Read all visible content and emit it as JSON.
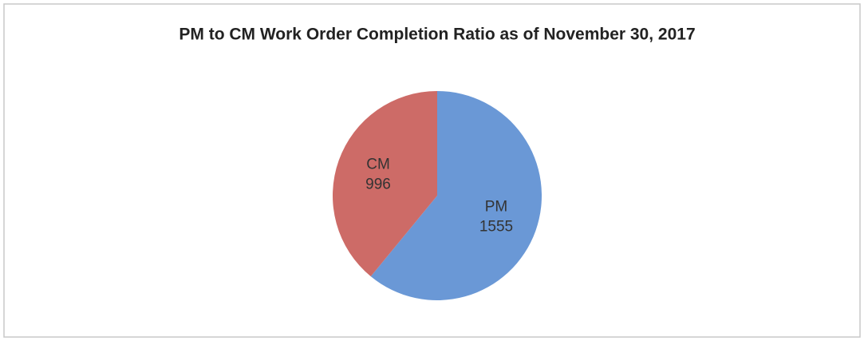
{
  "chart_data": {
    "type": "pie",
    "title": "PM to CM Work Order Completion Ratio as of November 30, 2017",
    "categories": [
      "PM",
      "CM"
    ],
    "values": [
      1555,
      996
    ],
    "colors": [
      "#6a98d6",
      "#cd6b67"
    ]
  }
}
